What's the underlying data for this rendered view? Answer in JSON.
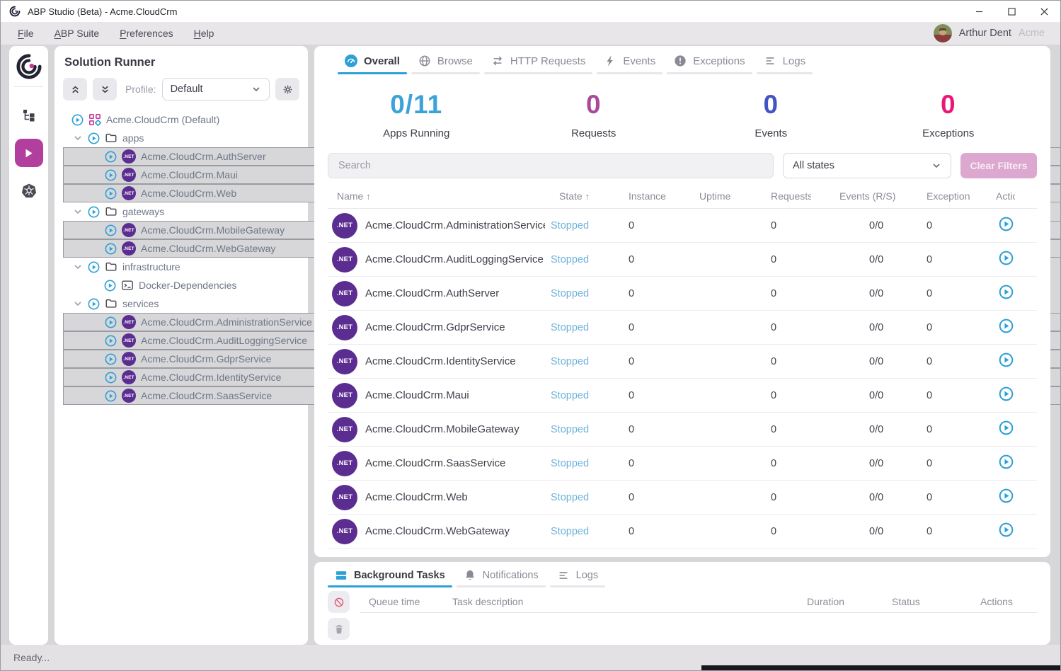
{
  "window": {
    "title": "ABP Studio (Beta) - Acme.CloudCrm"
  },
  "menu_bar": {
    "items": [
      {
        "label": "File",
        "accel": "F"
      },
      {
        "label": "ABP Suite",
        "accel": "A"
      },
      {
        "label": "Preferences",
        "accel": "P"
      },
      {
        "label": "Help",
        "accel": "H"
      }
    ],
    "user": {
      "name": "Arthur Dent",
      "tenant": "Acme"
    }
  },
  "activity_bar": {
    "items": [
      {
        "icon": "solution-explorer",
        "active": false
      },
      {
        "icon": "solution-runner-play",
        "active": true
      },
      {
        "icon": "kubernetes",
        "active": false
      }
    ]
  },
  "solution_runner": {
    "title": "Solution Runner",
    "toolbar": {
      "profile_label": "Profile:",
      "profile_value": "Default"
    },
    "tree": [
      {
        "label": "Acme.CloudCrm (Default)",
        "type": "solution"
      },
      {
        "label": "apps",
        "type": "folder"
      },
      {
        "label": "Acme.CloudCrm.AuthServer",
        "type": "app"
      },
      {
        "label": "Acme.CloudCrm.Maui",
        "type": "app"
      },
      {
        "label": "Acme.CloudCrm.Web",
        "type": "app"
      },
      {
        "label": "gateways",
        "type": "folder"
      },
      {
        "label": "Acme.CloudCrm.MobileGateway",
        "type": "app"
      },
      {
        "label": "Acme.CloudCrm.WebGateway",
        "type": "app"
      },
      {
        "label": "infrastructure",
        "type": "folder"
      },
      {
        "label": "Docker-Dependencies",
        "type": "cli"
      },
      {
        "label": "services",
        "type": "folder"
      },
      {
        "label": "Acme.CloudCrm.AdministrationService",
        "type": "app"
      },
      {
        "label": "Acme.CloudCrm.AuditLoggingService",
        "type": "app"
      },
      {
        "label": "Acme.CloudCrm.GdprService",
        "type": "app"
      },
      {
        "label": "Acme.CloudCrm.IdentityService",
        "type": "app"
      },
      {
        "label": "Acme.CloudCrm.SaasService",
        "type": "app"
      }
    ]
  },
  "main": {
    "tabs": [
      {
        "label": "Overall",
        "icon": "gauge",
        "active": true
      },
      {
        "label": "Browse",
        "icon": "globe",
        "active": false
      },
      {
        "label": "HTTP Requests",
        "icon": "http-arrows",
        "active": false
      },
      {
        "label": "Events",
        "icon": "bolt",
        "active": false
      },
      {
        "label": "Exceptions",
        "icon": "exclamation-circle",
        "active": false
      },
      {
        "label": "Logs",
        "icon": "log-lines",
        "active": false
      }
    ],
    "stats": [
      {
        "value": "0/11",
        "label": "Apps Running",
        "color": "#3ba3d8"
      },
      {
        "value": "0",
        "label": "Requests",
        "color": "#a84b9c"
      },
      {
        "value": "0",
        "label": "Events",
        "color": "#4453c4"
      },
      {
        "value": "0",
        "label": "Exceptions",
        "color": "#ea1777"
      }
    ],
    "filters": {
      "search_placeholder": "Search",
      "state_filter_value": "All states",
      "clear_filters_label": "Clear Filters"
    },
    "table": {
      "columns": [
        {
          "label": "Name",
          "sort": "asc"
        },
        {
          "label": "State",
          "sort": "asc"
        },
        {
          "label": "Instance"
        },
        {
          "label": "Uptime"
        },
        {
          "label": "Requests"
        },
        {
          "label": "Events (R/S)"
        },
        {
          "label": "Exceptions"
        },
        {
          "label": "Actions"
        }
      ],
      "rows": [
        {
          "name": "Acme.CloudCrm.AdministrationService",
          "state": "Stopped",
          "instance": "0",
          "uptime": "",
          "requests": "0",
          "events": "0/0",
          "exceptions": "0"
        },
        {
          "name": "Acme.CloudCrm.AuditLoggingService",
          "state": "Stopped",
          "instance": "0",
          "uptime": "",
          "requests": "0",
          "events": "0/0",
          "exceptions": "0"
        },
        {
          "name": "Acme.CloudCrm.AuthServer",
          "state": "Stopped",
          "instance": "0",
          "uptime": "",
          "requests": "0",
          "events": "0/0",
          "exceptions": "0"
        },
        {
          "name": "Acme.CloudCrm.GdprService",
          "state": "Stopped",
          "instance": "0",
          "uptime": "",
          "requests": "0",
          "events": "0/0",
          "exceptions": "0"
        },
        {
          "name": "Acme.CloudCrm.IdentityService",
          "state": "Stopped",
          "instance": "0",
          "uptime": "",
          "requests": "0",
          "events": "0/0",
          "exceptions": "0"
        },
        {
          "name": "Acme.CloudCrm.Maui",
          "state": "Stopped",
          "instance": "0",
          "uptime": "",
          "requests": "0",
          "events": "0/0",
          "exceptions": "0"
        },
        {
          "name": "Acme.CloudCrm.MobileGateway",
          "state": "Stopped",
          "instance": "0",
          "uptime": "",
          "requests": "0",
          "events": "0/0",
          "exceptions": "0"
        },
        {
          "name": "Acme.CloudCrm.SaasService",
          "state": "Stopped",
          "instance": "0",
          "uptime": "",
          "requests": "0",
          "events": "0/0",
          "exceptions": "0"
        },
        {
          "name": "Acme.CloudCrm.Web",
          "state": "Stopped",
          "instance": "0",
          "uptime": "",
          "requests": "0",
          "events": "0/0",
          "exceptions": "0"
        },
        {
          "name": "Acme.CloudCrm.WebGateway",
          "state": "Stopped",
          "instance": "0",
          "uptime": "",
          "requests": "0",
          "events": "0/0",
          "exceptions": "0"
        }
      ]
    }
  },
  "bottom_panel": {
    "tabs": [
      {
        "label": "Background Tasks",
        "icon": "stack",
        "active": true
      },
      {
        "label": "Notifications",
        "icon": "bell",
        "active": false
      },
      {
        "label": "Logs",
        "icon": "log-lines",
        "active": false
      }
    ],
    "side_buttons": [
      {
        "icon": "cancel",
        "name": "cancel-tasks-button"
      },
      {
        "icon": "trash",
        "name": "clear-tasks-button"
      }
    ],
    "columns": [
      "Queue time",
      "Task description",
      "Duration",
      "Status",
      "Actions"
    ]
  },
  "status_bar": {
    "text": "Ready..."
  },
  "net_badge_label": ".NET",
  "colors": {
    "accent_blue": "#2da0d6",
    "brand_magenta": "#b23f9e",
    "stopped_state": "#6fb3dc",
    "net_badge": "#5c2d91"
  }
}
